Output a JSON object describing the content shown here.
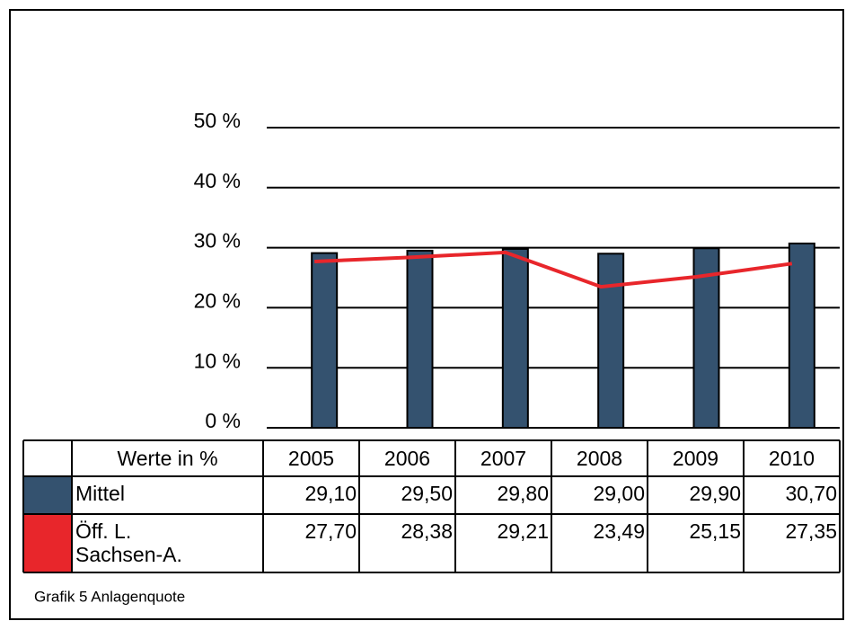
{
  "chart_data": {
    "type": "bar",
    "table_header": "Werte in %",
    "caption": "Grafik 5 Anlagenquote",
    "categories": [
      "2005",
      "2006",
      "2007",
      "2008",
      "2009",
      "2010"
    ],
    "series": [
      {
        "name": "Mittel",
        "type": "bar",
        "color": "#34526f",
        "values": [
          29.1,
          29.5,
          29.8,
          29.0,
          29.9,
          30.7
        ],
        "value_labels": [
          "29,10",
          "29,50",
          "29,80",
          "29,00",
          "29,90",
          "30,70"
        ]
      },
      {
        "name": "Öff. L. Sachsen-A.",
        "type": "line",
        "color": "#e8262b",
        "values": [
          27.7,
          28.38,
          29.21,
          23.49,
          25.15,
          27.35
        ],
        "value_labels": [
          "27,70",
          "28,38",
          "29,21",
          "23,49",
          "25,15",
          "27,35"
        ]
      }
    ],
    "ylim": [
      0,
      50
    ],
    "yticks": [
      {
        "value": 0,
        "label": "0 %"
      },
      {
        "value": 10,
        "label": "10 %"
      },
      {
        "value": 20,
        "label": "20 %"
      },
      {
        "value": 30,
        "label": "30 %"
      },
      {
        "value": 40,
        "label": "40 %"
      },
      {
        "value": 50,
        "label": "50 %"
      }
    ],
    "grid": true
  }
}
